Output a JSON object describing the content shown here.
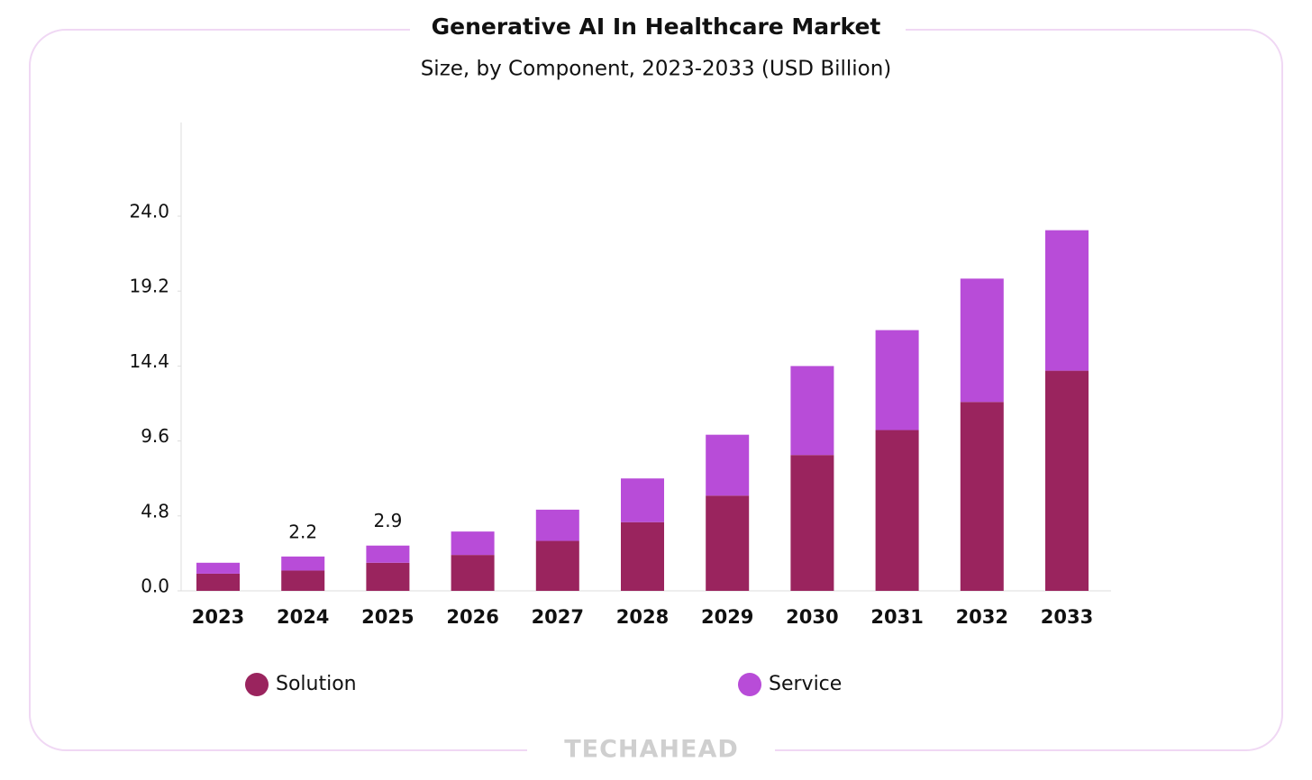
{
  "chart_data": {
    "type": "stacked_bar",
    "title": "Generative AI In Healthcare Market",
    "subtitle": "Size, by Component, 2023-2033 (USD Billion)",
    "categories": [
      "2023",
      "2024",
      "2025",
      "2026",
      "2027",
      "2028",
      "2029",
      "2030",
      "2031",
      "2032",
      "2033"
    ],
    "series": [
      {
        "name": "Solution",
        "color": "#9a245e",
        "values": [
          1.1,
          1.3,
          1.8,
          2.3,
          3.2,
          4.4,
          6.1,
          8.7,
          10.3,
          12.1,
          14.1
        ]
      },
      {
        "name": "Service",
        "color": "#b84cd8",
        "values": [
          0.7,
          0.9,
          1.1,
          1.5,
          2.0,
          2.8,
          3.9,
          5.7,
          6.4,
          7.9,
          9.0
        ]
      }
    ],
    "annotations": [
      {
        "category": "2024",
        "value": 2.2
      },
      {
        "category": "2025",
        "value": 2.9
      }
    ],
    "ylim": [
      0,
      30
    ],
    "yticks": [
      {
        "value": 0,
        "label": "0.0"
      },
      4.8,
      9.6,
      14.4,
      19.2,
      {
        "value": 24,
        "label": "24.0"
      }
    ],
    "grid": false,
    "watermark": "TECHAHEAD"
  }
}
